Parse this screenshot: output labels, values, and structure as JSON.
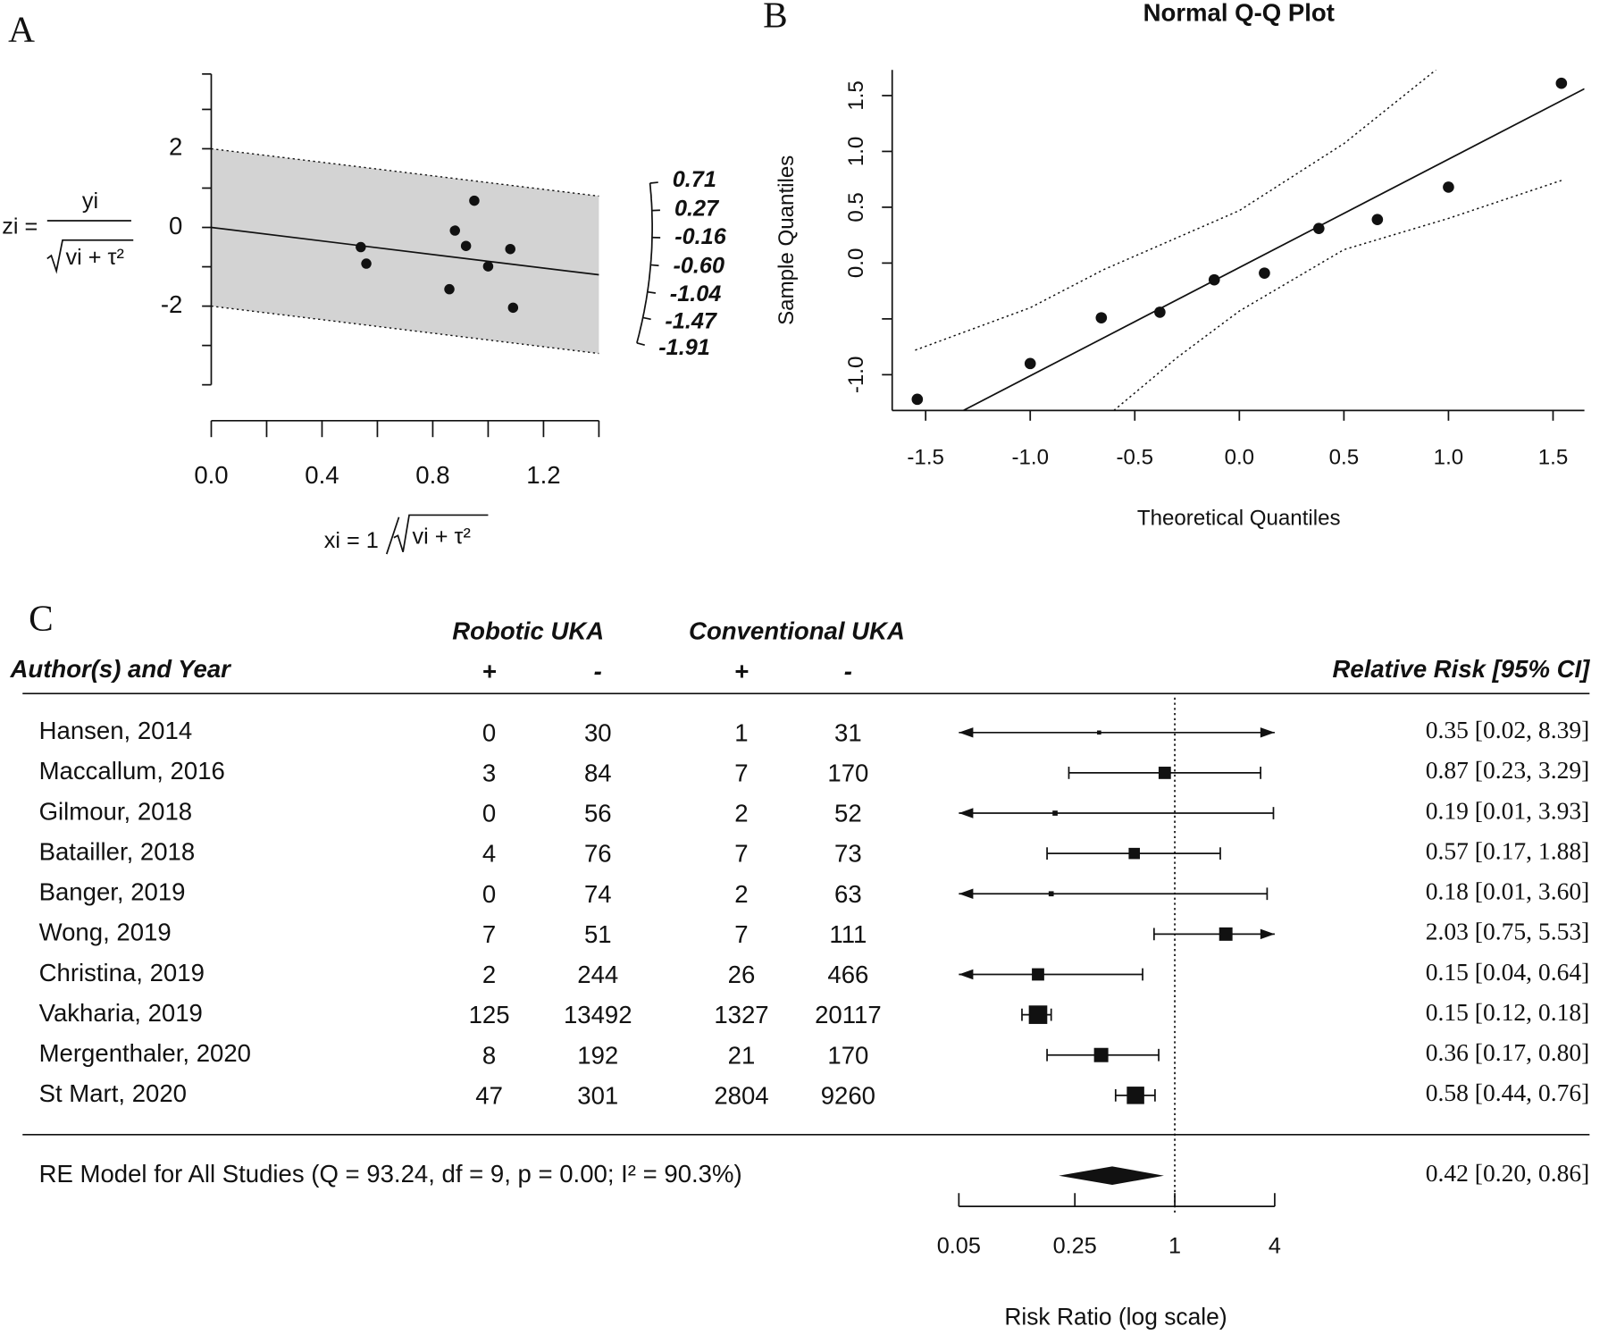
{
  "chart_data": [
    {
      "type": "radial",
      "panel": "A",
      "ylabel_lhs": "zi =",
      "ylabel_num": "yi",
      "ylabel_den": "vi + τ²",
      "xlabel_lhs": "xi = 1",
      "xlabel_den": "vi + τ²",
      "x": [
        0.54,
        0.56,
        0.88,
        0.92,
        0.95,
        1.0,
        1.08,
        0.86,
        1.09
      ],
      "y": [
        -0.5,
        -0.92,
        -0.08,
        -0.47,
        0.68,
        -0.99,
        -0.55,
        -1.57,
        -2.04
      ],
      "regression": {
        "intercept": 0,
        "slope": -0.86
      },
      "band": 2,
      "xlim": [
        0,
        1.4
      ],
      "ylim": [
        -4,
        3.9
      ],
      "xticks": [
        {
          "value": 0,
          "label": "0.0"
        },
        {
          "value": 0.4,
          "label": "0.4"
        },
        {
          "value": 0.8,
          "label": "0.8"
        },
        {
          "value": 1.2,
          "label": "1.2"
        }
      ],
      "xminor": [
        0.2,
        0.6,
        1.0,
        1.4
      ],
      "yticks": [
        -2,
        0,
        2
      ],
      "yminor": [
        -3,
        -1,
        1,
        3
      ],
      "arc_ticks": [
        {
          "value": 0.71,
          "label": "0.71"
        },
        {
          "value": 0.27,
          "label": "0.27"
        },
        {
          "value": -0.16,
          "label": "-0.16"
        },
        {
          "value": -0.6,
          "label": "-0.60"
        },
        {
          "value": -1.04,
          "label": "-1.04"
        },
        {
          "value": -1.47,
          "label": "-1.47"
        },
        {
          "value": -1.91,
          "label": "-1.91"
        }
      ]
    },
    {
      "type": "qq",
      "panel": "B",
      "title": "Normal Q-Q Plot",
      "xlabel": "Theoretical Quantiles",
      "ylabel": "Sample Quantiles",
      "x": [
        -1.54,
        -1.0,
        -0.66,
        -0.38,
        -0.12,
        0.12,
        0.38,
        0.66,
        1.0,
        1.54
      ],
      "y": [
        -1.22,
        -0.9,
        -0.49,
        -0.44,
        -0.15,
        -0.09,
        0.31,
        0.39,
        0.68,
        1.61
      ],
      "reference_line": {
        "intercept": -0.04,
        "slope": 0.97
      },
      "band_upper": {
        "x": [
          -1.55,
          -1.0,
          -0.65,
          0,
          0.5,
          0.94
        ],
        "y": [
          -0.78,
          -0.4,
          -0.06,
          0.47,
          1.07,
          1.73
        ]
      },
      "band_lower": {
        "x": [
          -0.6,
          -0.3,
          0,
          0.5,
          1.0,
          1.54
        ],
        "y": [
          -1.32,
          -0.85,
          -0.43,
          0.12,
          0.4,
          0.74
        ]
      },
      "xlim": [
        -1.66,
        1.65
      ],
      "ylim": [
        -1.32,
        1.73
      ],
      "xticks": [
        {
          "value": -1.5,
          "label": "-1.5"
        },
        {
          "value": -1,
          "label": "-1.0"
        },
        {
          "value": -0.5,
          "label": "-0.5"
        },
        {
          "value": 0,
          "label": "0.0"
        },
        {
          "value": 0.5,
          "label": "0.5"
        },
        {
          "value": 1,
          "label": "1.0"
        },
        {
          "value": 1.5,
          "label": "1.5"
        }
      ],
      "yticks": [
        {
          "value": -1,
          "label": "-1.0"
        },
        {
          "value": -0.5,
          "label": null
        },
        {
          "value": 0,
          "label": "0.0"
        },
        {
          "value": 0.5,
          "label": "0.5"
        },
        {
          "value": 1,
          "label": "1.0"
        },
        {
          "value": 1.5,
          "label": "1.5"
        }
      ]
    },
    {
      "type": "forest",
      "panel": "C",
      "group_headers": [
        "Robotic UKA",
        "Conventional UKA"
      ],
      "column_headers": [
        "Author(s) and Year",
        "+",
        "-",
        "+",
        "-",
        "Relative Risk [95% CI]"
      ],
      "studies": [
        "Hansen, 2014",
        "Maccallum, 2016",
        "Gilmour, 2018",
        "Batailler, 2018",
        "Banger, 2019",
        "Wong, 2019",
        "Christina, 2019",
        "Vakharia, 2019",
        "Mergenthaler, 2020",
        "St Mart, 2020"
      ],
      "robotic_pos": [
        0,
        3,
        0,
        4,
        0,
        7,
        2,
        125,
        8,
        47
      ],
      "robotic_neg": [
        30,
        84,
        56,
        76,
        74,
        51,
        244,
        13492,
        192,
        301
      ],
      "conventional_pos": [
        1,
        7,
        2,
        7,
        2,
        7,
        26,
        1327,
        21,
        2804
      ],
      "conventional_neg": [
        31,
        170,
        52,
        73,
        63,
        111,
        466,
        20117,
        170,
        9260
      ],
      "estimates": [
        0.35,
        0.87,
        0.19,
        0.57,
        0.18,
        2.03,
        0.15,
        0.15,
        0.36,
        0.58
      ],
      "ci_lower": [
        0.02,
        0.23,
        0.01,
        0.17,
        0.01,
        0.75,
        0.04,
        0.12,
        0.17,
        0.44
      ],
      "ci_upper": [
        8.39,
        3.29,
        3.93,
        1.88,
        3.6,
        5.53,
        0.64,
        0.18,
        0.8,
        0.76
      ],
      "weights": [
        1.1,
        10,
        1.7,
        8.3,
        1.7,
        11.7,
        10,
        22.4,
        13.4,
        20
      ],
      "value_labels": [
        "0.35 [0.02, 8.39]",
        "0.87 [0.23, 3.29]",
        "0.19 [0.01, 3.93]",
        "0.57 [0.17, 1.88]",
        "0.18 [0.01, 3.60]",
        "2.03 [0.75, 5.53]",
        "0.15 [0.04, 0.64]",
        "0.15 [0.12, 0.18]",
        "0.36 [0.17, 0.80]",
        "0.58 [0.44, 0.76]"
      ],
      "summary": {
        "label": "RE Model for All Studies (Q = 93.24, df = 9, p = 0.00; I² = 90.3%)",
        "estimate": 0.42,
        "ci_lower": 0.2,
        "ci_upper": 0.86,
        "value_label": "0.42 [0.20, 0.86]"
      },
      "reference_value": 1,
      "log_scale": true,
      "xlim": [
        0.05,
        4
      ],
      "xticks": [
        0.05,
        0.25,
        1,
        4
      ],
      "xlabel": "Risk Ratio (log scale)"
    }
  ]
}
